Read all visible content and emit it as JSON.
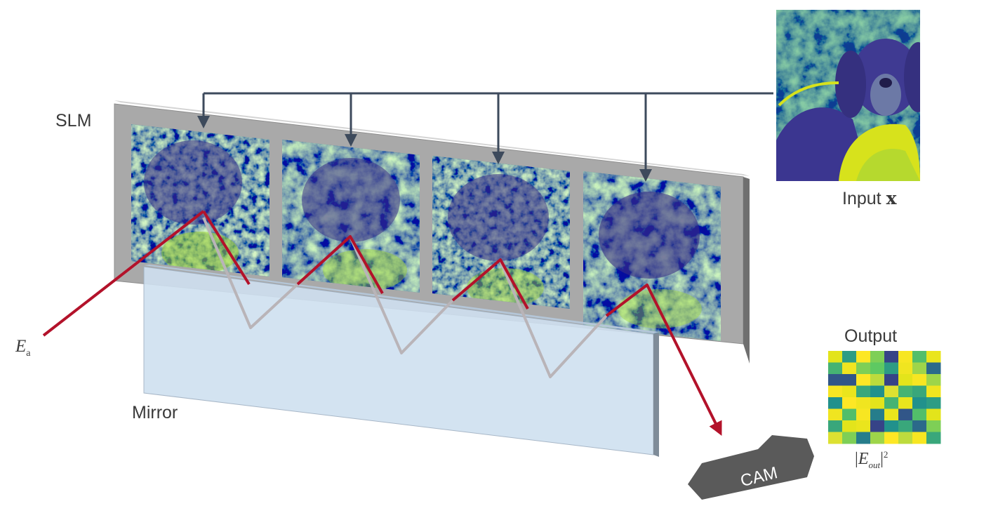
{
  "labels": {
    "slm": "SLM",
    "mirror": "Mirror",
    "input_text": "Input",
    "input_symbol": "x",
    "output": "Output",
    "e_in_symbol": "E",
    "e_in_subscript": "a",
    "e_out_open": "|",
    "e_out_symbol": "E",
    "e_out_subscript": "out",
    "e_out_close": "|",
    "e_out_power": "2",
    "camera": "CAM"
  },
  "slm_panel_count": 4,
  "colors": {
    "slm_frame": "#a9a9a9",
    "slm_frame_edge": "#6f6f6f",
    "mirror_fill": "#cfe0f0",
    "mirror_edge": "#7f8c99",
    "beam_incident": "#b3122a",
    "beam_reflected": "#b9b4b8",
    "connector": "#3d4a5c",
    "camera": "#5a5a5a",
    "viridis_dark": "#3b2f86",
    "viridis_mid": "#21918c",
    "viridis_bright": "#dde318"
  },
  "output_grid": {
    "rows": 8,
    "cols": 8,
    "values": [
      [
        0.95,
        0.3,
        0.75,
        0.55,
        0.05,
        0.8,
        0.45,
        0.9
      ],
      [
        0.4,
        0.85,
        0.55,
        0.5,
        0.3,
        0.85,
        0.6,
        0.15
      ],
      [
        0.1,
        0.1,
        0.75,
        0.65,
        0.05,
        0.95,
        0.8,
        0.6
      ],
      [
        0.8,
        0.9,
        0.35,
        0.25,
        0.7,
        0.4,
        0.35,
        0.85
      ],
      [
        0.25,
        0.75,
        0.85,
        0.95,
        0.4,
        0.9,
        0.25,
        0.3
      ],
      [
        0.85,
        0.45,
        0.8,
        0.2,
        0.9,
        0.1,
        0.45,
        0.95
      ],
      [
        0.35,
        0.95,
        0.9,
        0.05,
        0.25,
        0.35,
        0.15,
        0.55
      ],
      [
        0.7,
        0.55,
        0.2,
        0.6,
        0.75,
        0.65,
        0.8,
        0.35
      ]
    ]
  }
}
